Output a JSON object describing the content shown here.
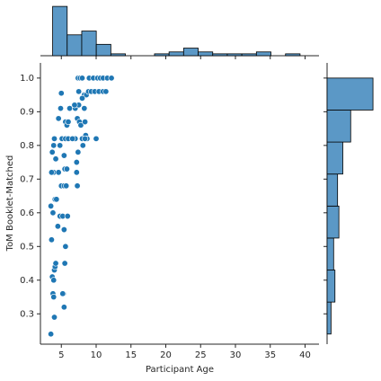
{
  "chart_data": [
    {
      "type": "scatter",
      "xlabel": "Participant Age",
      "ylabel": "ToM Booklet-Matched",
      "color": "#1f77b4",
      "x": [
        3.5,
        3.7,
        3.8,
        3.9,
        4.0,
        4.1,
        4.2,
        3.9,
        4.0,
        3.6,
        3.5,
        3.8,
        3.9,
        3.6,
        3.7,
        3.9,
        4.0,
        4.2,
        4.1,
        4.3,
        4.6,
        4.8,
        4.5,
        4.8,
        4.6,
        4.9,
        5.0,
        5.1,
        5.0,
        5.2,
        5.3,
        5.4,
        5.2,
        5.4,
        5.6,
        5.5,
        5.4,
        5.5,
        5.4,
        5.6,
        5.8,
        5.6,
        5.9,
        5.7,
        5.8,
        6.0,
        6.2,
        6.0,
        7.0,
        7.2,
        7.2,
        7.3,
        7.0,
        7.3,
        7.5,
        7.4,
        7.7,
        8.0,
        7.6,
        7.8,
        8.0,
        8.1,
        8.3,
        8.3,
        8.5,
        8.7,
        8.6,
        8.9,
        9.0,
        9.3,
        9.6,
        9.8,
        10.0,
        10.2,
        10.4,
        10.6,
        11.0,
        11.0,
        11.4,
        11.6,
        12.2,
        6.9,
        7.5,
        8.0,
        8.4,
        6.6,
        7.4,
        8.4
      ],
      "values": [
        0.24,
        0.41,
        0.36,
        0.35,
        0.43,
        0.44,
        0.45,
        0.4,
        0.29,
        0.52,
        0.62,
        0.6,
        0.72,
        0.72,
        0.78,
        0.8,
        0.82,
        0.76,
        0.64,
        0.64,
        0.72,
        0.8,
        0.56,
        0.59,
        0.88,
        0.91,
        0.955,
        0.82,
        0.68,
        0.59,
        0.36,
        0.32,
        0.36,
        0.55,
        0.5,
        0.45,
        0.68,
        0.73,
        0.77,
        0.87,
        0.86,
        0.82,
        0.59,
        0.68,
        0.73,
        0.82,
        0.91,
        0.87,
        0.82,
        0.75,
        0.72,
        0.68,
        0.91,
        0.88,
        0.92,
        1.0,
        1.0,
        1.0,
        0.87,
        0.86,
        0.82,
        0.8,
        0.95,
        0.91,
        0.83,
        0.82,
        0.95,
        0.96,
        1.0,
        0.96,
        1.0,
        0.96,
        0.82,
        1.0,
        0.96,
        1.0,
        0.96,
        1.0,
        0.96,
        1.0,
        1.0,
        0.92,
        0.96,
        0.94,
        0.87,
        0.82,
        0.78,
        0.82
      ],
      "xlim": [
        2,
        42
      ],
      "xticks": [
        5,
        10,
        15,
        20,
        25,
        30,
        35,
        40
      ],
      "ylim": [
        0.21,
        1.045
      ],
      "yticks": [
        0.3,
        0.4,
        0.5,
        0.6,
        0.7,
        0.8,
        0.9,
        {
          "value": 1,
          "label": "1.0"
        }
      ]
    },
    {
      "type": "histogram",
      "color": "#5b98c6",
      "bins": [
        3.75,
        5.84,
        7.93,
        10.02,
        12.11,
        14.2,
        16.29,
        18.38,
        20.47,
        22.56,
        24.65,
        26.74,
        28.83,
        30.92,
        33.01,
        35.1,
        37.19,
        39.28
      ],
      "values": [
        26,
        11,
        13,
        6,
        1,
        0,
        0,
        1,
        2,
        4,
        2,
        1,
        1,
        1,
        2,
        0,
        1
      ],
      "xlim": [
        2,
        42
      ],
      "ylim": [
        0,
        27
      ]
    },
    {
      "type": "histogram-horizontal",
      "color": "#5b98c6",
      "bins": [
        0.24,
        0.335,
        0.43,
        0.525,
        0.62,
        0.715,
        0.81,
        0.905,
        1.0
      ],
      "values": [
        3,
        6,
        5,
        9,
        8,
        12,
        18,
        35
      ],
      "xlim": [
        0,
        37
      ],
      "ylim": [
        0.21,
        1.045
      ]
    }
  ]
}
